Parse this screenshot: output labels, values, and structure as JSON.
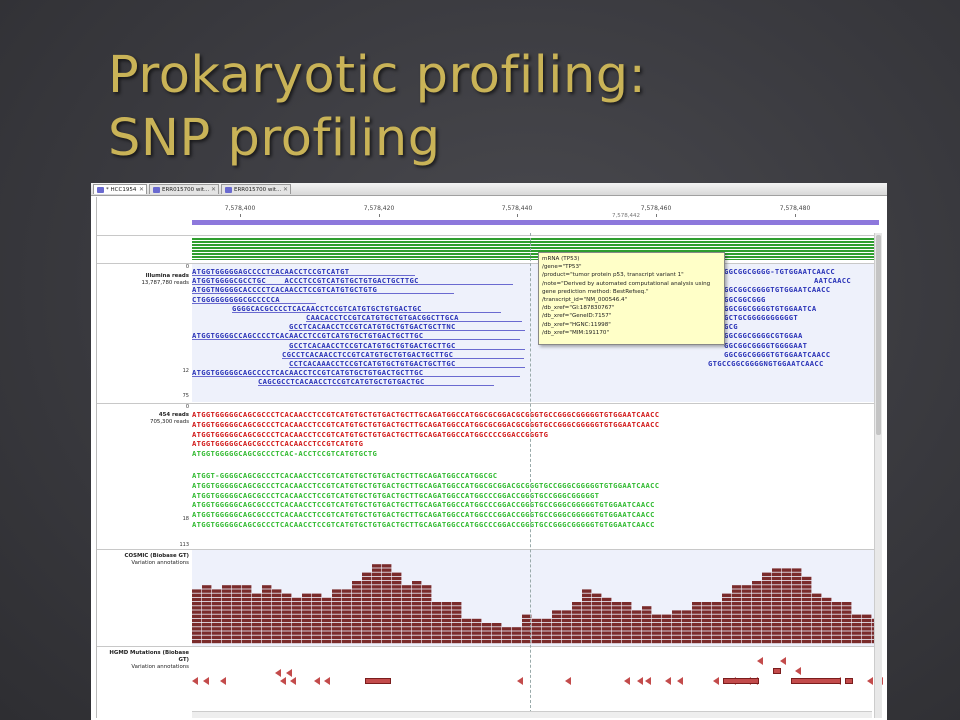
{
  "slide": {
    "title_line1": "Prokaryotic profiling:",
    "title_line2": "SNP profiling"
  },
  "app": {
    "tabs": [
      "* HCC1954",
      "ERR015700 wit...",
      "ERR015700 wit..."
    ]
  },
  "ruler": {
    "ticks": [
      "7,578,400",
      "7,578,420",
      "7,578,440",
      "7,578,460",
      "7,578,480"
    ],
    "position_readout": "7,578,442"
  },
  "tracks": {
    "illumina": {
      "title": "Illumina reads",
      "count": "13,787,780 reads",
      "axis_top": "0",
      "axis_mid": "12",
      "axis_bottom": "75"
    },
    "roche454": {
      "title": "454 reads",
      "count": "705,300 reads",
      "axis_top": "0",
      "axis_mid": "18",
      "axis_bottom": "113"
    },
    "cosmic": {
      "title": "COSMIC (Biobase GT)",
      "subtitle": "Variation annotations"
    },
    "hgmd": {
      "title": "HGMD Mutations (Biobase GT)",
      "subtitle": "Variation annotations"
    }
  },
  "illumina_reads": [
    {
      "x": 0,
      "text": "ATGGTGGGGGAGCCCCTCACAACCTCCGTCATGT"
    },
    {
      "x": 0,
      "text": "ATGGTGGGGCGCCTGC    ACCCTCCGTCATGTGCTGTGACTGCTTGC"
    },
    {
      "x": 0,
      "text": "ATGGTNGGGGCACCCCTCACAACCTCCGTCATGTGCTGTG"
    },
    {
      "x": 0,
      "text": "CTGGGGGGGGGCGCCCCCA"
    },
    {
      "x": 40,
      "text": "GGGGCACGCCCCTCACAACCTCCGTCATGTGCTGTGACTGC"
    },
    {
      "x": 114,
      "text": "CAACACCTCCGTCATGTGCTGTGACGGCTTGCA"
    },
    {
      "x": 97,
      "text": "GCCTCACAACCTCCGTCATGTGCTGTGACTGCTTNC"
    },
    {
      "x": 0,
      "text": "ATGGTGGGGCCAGCCCCTCACAACCTCCGTCATGTGCTGTGACTGCTTGC"
    },
    {
      "x": 97,
      "text": "GCCTCACAACCTCCGTCATGTGCTGTGACTGCTTGC"
    },
    {
      "x": 90,
      "text": "CGCCTCACAACCTCCGTCATGTGCTGTGACTGCTTGC"
    },
    {
      "x": 97,
      "text": "CCTCACAAACCTCCGTCATGTGCTGTGACTGCTTGC"
    },
    {
      "x": 0,
      "text": "ATGGTGGGGGCAGCCCCTCACAACCTCCGTCATGTGCTGTGACTGCTTGC"
    },
    {
      "x": 66,
      "text": "CAGCGCCTCACAACCTCCGTCATGTGCTGTGACTGC"
    }
  ],
  "illumina_reads_right": [
    {
      "x": 532,
      "text": "GGCGGCGGGG-TGTGGAATCAACC"
    },
    {
      "x": 622,
      "text": "AATCAACC"
    },
    {
      "x": 532,
      "text": "GGCGGCGGGGTGTGGAATCAACC"
    },
    {
      "x": 532,
      "text": "GGCGGCGGG"
    },
    {
      "x": 532,
      "text": "GGCGGCGGGGTGTGGAATCA"
    },
    {
      "x": 532,
      "text": "GCTGCGGGGGGGGGGT"
    },
    {
      "x": 532,
      "text": "GCG"
    },
    {
      "x": 532,
      "text": "GGCGGCGGGGCGTGGAA"
    },
    {
      "x": 532,
      "text": "GGCGGCGGGGTGGGGAAT"
    },
    {
      "x": 532,
      "text": "GGCGGCGGGGTGTGGAATCAACC"
    },
    {
      "x": 516,
      "text": "GTGCCGGCGGGGNGTGGAATCAACC"
    }
  ],
  "tooltip": [
    "mRNA (TP53)",
    "/gene=\"TP53\"",
    "/product=\"tumor protein p53, transcript variant 1\"",
    "/note=\"Derived by automated computational analysis using",
    "    gene prediction method: BestRefseq.\"",
    "/transcript_id=\"NM_000546.4\"",
    "/db_xref=\"GI:187830767\"",
    "/db_xref=\"GeneID:7157\"",
    "/db_xref=\"HGNC:11998\"",
    "/db_xref=\"MIM:191170\""
  ],
  "roche_reads": [
    {
      "color": "red",
      "x": 0,
      "text": "ATGGTGGGGGCAGCGCCCTCACAACCTCCGTCATGTGCTGTGACTGCTTGCAGATGGCCATGGCGCGGACGCGGGTGCCGGGCGGGGGTGTGGAATCAACC"
    },
    {
      "color": "red",
      "x": 0,
      "text": "ATGGTGGGGGCAGCGCCCTCACAACCTCCGTCATGTGCTGTGACTGCTTGCAGATGGCCATGGCGCGGACGCGGGTGCCGGGCGGGGGTGTGGAATCAACC"
    },
    {
      "color": "red",
      "x": 0,
      "text": "ATGGTGGGGGCAGCGCCCTCACAACCTCCGTCATGTGCTGTGACTGCTTGCAGATGGCCATGGCCCCGGACCGGGTG"
    },
    {
      "color": "red",
      "x": 0,
      "text": "ATGGTGGGGGCAGCGCCCTCACAACCTCCGTCATGTG"
    },
    {
      "color": "green",
      "x": 0,
      "text": "ATGGTGGGGGCAGCGCCCTCAC-ACCTCCGTCATGTGCTG"
    },
    {
      "color": "green",
      "x": 0,
      "text": "ATGGT-GGGGCAGCGCCCTCACAACCTCCGTCATGTGCTGTGACTGCTTGCAGATGGCCATGGCGC"
    },
    {
      "color": "green",
      "x": 0,
      "text": "ATGGTGGGGGCAGCGCCCTCACAACCTCCGTCATGTGCTGTGACTGCTTGCAGATGGCCATGGCGCGGACGCGGGTGCCGGGCGGGGGTGTGGAATCAACC"
    },
    {
      "color": "green",
      "x": 0,
      "text": "ATGGTGGGGGCAGCGCCCTCACAACCTCCGTCATGTGCTGTGACTGCTTGCAGATGGCCATGGCCCGGACCGGGTGCCGGGCGGGGGT"
    },
    {
      "color": "green",
      "x": 0,
      "text": "ATGGTGGGGGCAGCGCCCTCACAACCTCCGTCATGTGCTGTGACTGCTTGCAGATGGCCATGGCCCGGACCGGGTGCCGGGCGGGGGTGTGGAATCAACC"
    },
    {
      "color": "green",
      "x": 0,
      "text": "ATGGTGGGGGCAGCGCCCTCACAACCTCCGTCATGTGCTGTGACTGCTTGCAGATGGCCATGGCCCGGACCGGGTGCCGGGCGGGGGTGTGGAATCAACC"
    },
    {
      "color": "green",
      "x": 0,
      "text": "ATGGTGGGGGCAGCGCCCTCACAACCTCCGTCATGTGCTGTGACTGCTTGCAGATGGCCATGGCCCGGACCGGGTGCCGGGCGGGGGTGTGGAATCAACC"
    }
  ],
  "colors": {
    "accent": "#c9b357",
    "selection": "#8d78dc",
    "coverage": "#2f9e2f",
    "variant": "#7a2b2b",
    "hgmd": "#c34b4b",
    "illumina_base": "#2c35b8",
    "roche_forward": "#d11a1a",
    "roche_reverse": "#33bb33",
    "tooltip_bg": "#ffffc8"
  }
}
